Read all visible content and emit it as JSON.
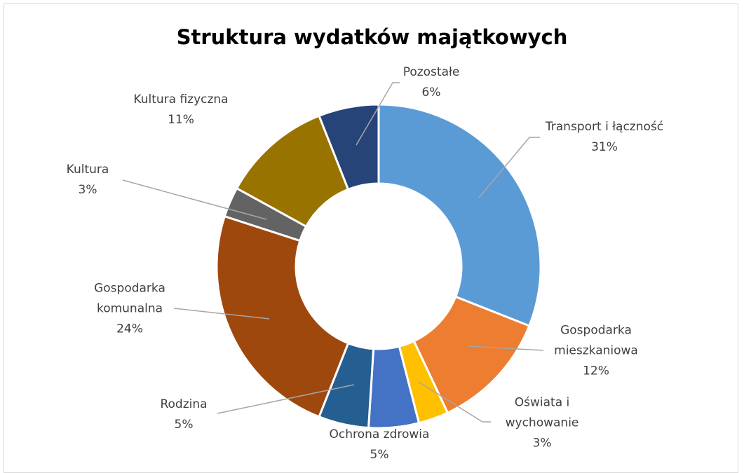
{
  "chart_data": {
    "type": "donut",
    "title": "Struktura wydatków majątkowych",
    "categories": [
      "Transport i łączność",
      "Gospodarka mieszkaniowa",
      "Oświata i wychowanie",
      "Ochrona zdrowia",
      "Rodzina",
      "Gospodarka komunalna",
      "Kultura",
      "Kultura fizyczna",
      "Pozostałe"
    ],
    "values": [
      31,
      12,
      3,
      5,
      5,
      24,
      3,
      11,
      6
    ],
    "value_labels": [
      "31%",
      "12%",
      "3%",
      "5%",
      "5%",
      "24%",
      "3%",
      "11%",
      "6%"
    ],
    "colors": [
      "#5B9BD5",
      "#ED7D31",
      "#FFC000",
      "#4472C4",
      "#255E91",
      "#9E480E",
      "#636363",
      "#997300",
      "#264478"
    ]
  }
}
